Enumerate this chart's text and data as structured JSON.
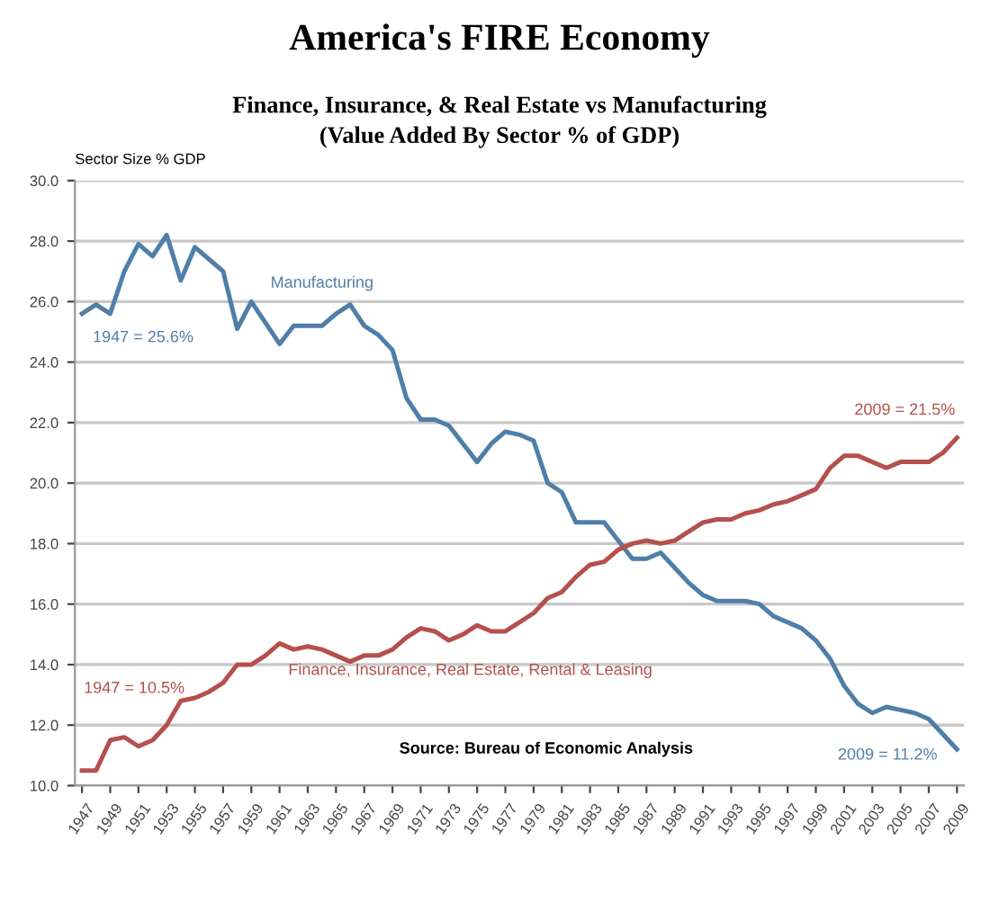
{
  "chart_data": {
    "type": "line",
    "title": "America's FIRE Economy",
    "subtitle": "Finance, Insurance, & Real Estate vs Manufacturing\n(Value Added By Sector % of GDP)",
    "ylabel": "Sector Size % GDP",
    "x": [
      1947,
      1948,
      1949,
      1950,
      1951,
      1952,
      1953,
      1954,
      1955,
      1956,
      1957,
      1958,
      1959,
      1960,
      1961,
      1962,
      1963,
      1964,
      1965,
      1966,
      1967,
      1968,
      1969,
      1970,
      1971,
      1972,
      1973,
      1974,
      1975,
      1976,
      1977,
      1978,
      1979,
      1980,
      1981,
      1982,
      1983,
      1984,
      1985,
      1986,
      1987,
      1988,
      1989,
      1990,
      1991,
      1992,
      1993,
      1994,
      1995,
      1996,
      1997,
      1998,
      1999,
      2000,
      2001,
      2002,
      2003,
      2004,
      2005,
      2006,
      2007,
      2008,
      2009
    ],
    "series": [
      {
        "name": "Manufacturing",
        "color": "#4f7fa8",
        "values": [
          25.6,
          25.9,
          25.6,
          27.0,
          27.9,
          27.5,
          28.2,
          26.7,
          27.8,
          27.4,
          27.0,
          25.1,
          26.0,
          25.3,
          24.6,
          25.2,
          25.2,
          25.2,
          25.6,
          25.9,
          25.2,
          24.9,
          24.4,
          22.8,
          22.1,
          22.1,
          21.9,
          21.3,
          20.7,
          21.3,
          21.7,
          21.6,
          21.4,
          20.0,
          19.7,
          18.7,
          18.7,
          18.7,
          18.1,
          17.5,
          17.5,
          17.7,
          17.2,
          16.7,
          16.3,
          16.1,
          16.1,
          16.1,
          16.0,
          15.6,
          15.4,
          15.2,
          14.8,
          14.2,
          13.3,
          12.7,
          12.4,
          12.6,
          12.5,
          12.4,
          12.2,
          11.7,
          11.2
        ]
      },
      {
        "name": "Finance, Insurance, Real Estate, Rental & Leasing",
        "color": "#b5504c",
        "values": [
          10.5,
          10.5,
          11.5,
          11.6,
          11.3,
          11.5,
          12.0,
          12.8,
          12.9,
          13.1,
          13.4,
          14.0,
          14.0,
          14.3,
          14.7,
          14.5,
          14.6,
          14.5,
          14.3,
          14.1,
          14.3,
          14.3,
          14.5,
          14.9,
          15.2,
          15.1,
          14.8,
          15.0,
          15.3,
          15.1,
          15.1,
          15.4,
          15.7,
          16.2,
          16.4,
          16.9,
          17.3,
          17.4,
          17.8,
          18.0,
          18.1,
          18.0,
          18.1,
          18.4,
          18.7,
          18.8,
          18.8,
          19.0,
          19.1,
          19.3,
          19.4,
          19.6,
          19.8,
          20.5,
          20.9,
          20.9,
          20.7,
          20.5,
          20.7,
          20.7,
          20.7,
          21.0,
          21.5
        ]
      }
    ],
    "xlim": [
      1946.5,
      2009.5
    ],
    "xticks": [
      1947,
      1949,
      1951,
      1953,
      1955,
      1957,
      1959,
      1961,
      1963,
      1965,
      1967,
      1969,
      1971,
      1973,
      1975,
      1977,
      1979,
      1981,
      1983,
      1985,
      1987,
      1989,
      1991,
      1993,
      1995,
      1997,
      1999,
      2001,
      2003,
      2005,
      2007,
      2009
    ],
    "ylim": [
      10,
      30
    ],
    "yticks": [
      {
        "value": 10,
        "label": "10.0"
      },
      {
        "value": 12,
        "label": "12.0"
      },
      {
        "value": 14,
        "label": "14.0"
      },
      {
        "value": 16,
        "label": "16.0"
      },
      {
        "value": 18,
        "label": "18.0"
      },
      {
        "value": 20,
        "label": "20.0"
      },
      {
        "value": 22,
        "label": "22.0"
      },
      {
        "value": 24,
        "label": "24.0"
      },
      {
        "value": 26,
        "label": "26.0"
      },
      {
        "value": 28,
        "label": "28.0"
      },
      {
        "value": 30,
        "label": "30.0"
      }
    ],
    "grid": "y",
    "legend": false,
    "marker": "none",
    "line_style": "solid",
    "annotations": [
      "1947 = 25.6%",
      "2009 = 21.5%",
      "1947 = 10.5%",
      "2009 = 11.2%",
      "Source: Bureau of Economic Analysis"
    ]
  }
}
